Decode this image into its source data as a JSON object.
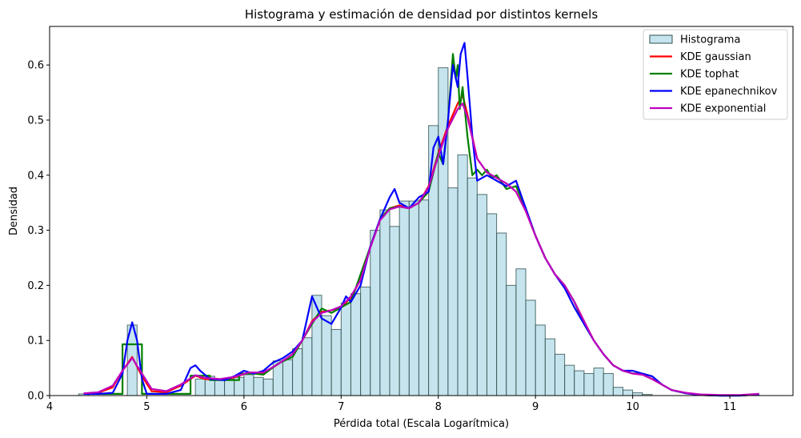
{
  "chart_data": {
    "type": "histogram",
    "title": "Histograma y estimación de densidad por distintos kernels",
    "xlabel": "Pérdida total (Escala Logarítmica)",
    "ylabel": "Densidad",
    "xlim": [
      4.0,
      11.65
    ],
    "ylim": [
      0.0,
      0.67
    ],
    "xticks": [
      4,
      5,
      6,
      7,
      8,
      9,
      10,
      11
    ],
    "yticks": [
      0.0,
      0.1,
      0.2,
      0.3,
      0.4,
      0.5,
      0.6
    ],
    "legend_position": "top-right",
    "histogram": {
      "name": "Histograma",
      "color": "#add8e6",
      "edge_color": "#2f4f4f",
      "bin_edges": [
        4.3,
        4.4,
        4.5,
        4.6,
        4.7,
        4.8,
        4.9,
        5.0,
        5.1,
        5.2,
        5.3,
        5.4,
        5.5,
        5.6,
        5.7,
        5.8,
        5.9,
        6.0,
        6.1,
        6.2,
        6.3,
        6.4,
        6.5,
        6.6,
        6.7,
        6.8,
        6.9,
        7.0,
        7.1,
        7.2,
        7.3,
        7.4,
        7.5,
        7.6,
        7.7,
        7.8,
        7.9,
        8.0,
        8.1,
        8.2,
        8.3,
        8.4,
        8.5,
        8.6,
        8.7,
        8.8,
        8.9,
        9.0,
        9.1,
        9.2,
        9.3,
        9.4,
        9.5,
        9.6,
        9.7,
        9.8,
        9.9,
        10.0,
        10.1,
        10.2,
        10.3,
        10.4,
        10.5,
        10.6,
        10.7,
        10.8,
        10.9,
        11.0,
        11.1,
        11.2,
        11.3
      ],
      "values": [
        0.003,
        0.0,
        0.0,
        0.0,
        0.0,
        0.128,
        0.0,
        0.0,
        0.0,
        0.0,
        0.0,
        0.0,
        0.03,
        0.035,
        0.03,
        0.03,
        0.033,
        0.038,
        0.033,
        0.03,
        0.063,
        0.065,
        0.085,
        0.105,
        0.182,
        0.145,
        0.12,
        0.168,
        0.185,
        0.197,
        0.3,
        0.337,
        0.307,
        0.353,
        0.353,
        0.355,
        0.49,
        0.595,
        0.377,
        0.437,
        0.395,
        0.365,
        0.33,
        0.295,
        0.2,
        0.23,
        0.173,
        0.128,
        0.103,
        0.075,
        0.055,
        0.045,
        0.04,
        0.05,
        0.04,
        0.015,
        0.01,
        0.005,
        0.002,
        0.0,
        0.0,
        0.0,
        0.0,
        0.0,
        0.0,
        0.0,
        0.0,
        0.0,
        0.0,
        0.003
      ]
    },
    "series": [
      {
        "name": "KDE gaussian",
        "color": "#ff0000",
        "x": [
          4.35,
          4.5,
          4.65,
          4.75,
          4.85,
          4.95,
          5.05,
          5.2,
          5.35,
          5.5,
          5.6,
          5.75,
          5.9,
          6.05,
          6.2,
          6.35,
          6.5,
          6.6,
          6.7,
          6.8,
          6.9,
          7.0,
          7.1,
          7.2,
          7.3,
          7.4,
          7.5,
          7.6,
          7.7,
          7.8,
          7.9,
          8.0,
          8.1,
          8.2,
          8.25,
          8.3,
          8.4,
          8.5,
          8.6,
          8.7,
          8.8,
          8.9,
          9.0,
          9.1,
          9.2,
          9.3,
          9.4,
          9.5,
          9.6,
          9.7,
          9.8,
          9.9,
          10.0,
          10.1,
          10.2,
          10.3,
          10.4,
          10.55,
          10.7,
          10.9,
          11.1,
          11.3
        ],
        "y": [
          0.003,
          0.005,
          0.015,
          0.045,
          0.07,
          0.035,
          0.008,
          0.006,
          0.018,
          0.036,
          0.03,
          0.028,
          0.033,
          0.042,
          0.04,
          0.057,
          0.075,
          0.1,
          0.135,
          0.152,
          0.155,
          0.16,
          0.178,
          0.21,
          0.27,
          0.32,
          0.34,
          0.345,
          0.34,
          0.35,
          0.38,
          0.44,
          0.49,
          0.53,
          0.545,
          0.51,
          0.43,
          0.405,
          0.395,
          0.385,
          0.37,
          0.335,
          0.29,
          0.25,
          0.22,
          0.2,
          0.17,
          0.135,
          0.1,
          0.075,
          0.055,
          0.045,
          0.04,
          0.038,
          0.03,
          0.02,
          0.01,
          0.004,
          0.001,
          0.0,
          0.0,
          0.002
        ]
      },
      {
        "name": "KDE tophat",
        "color": "#008000",
        "x": [
          4.35,
          4.5,
          4.65,
          4.75,
          4.75,
          4.95,
          4.95,
          5.2,
          5.4,
          5.45,
          5.45,
          5.65,
          5.65,
          5.85,
          5.95,
          5.95,
          6.1,
          6.2,
          6.35,
          6.5,
          6.6,
          6.7,
          6.8,
          6.9,
          7.0,
          7.1,
          7.2,
          7.3,
          7.4,
          7.5,
          7.6,
          7.7,
          7.8,
          7.9,
          8.0,
          8.05,
          8.1,
          8.15,
          8.18,
          8.2,
          8.22,
          8.25,
          8.3,
          8.35,
          8.4,
          8.45,
          8.5,
          8.55,
          8.6,
          8.7,
          8.8,
          8.9,
          9.0,
          9.1,
          9.2,
          9.3,
          9.4,
          9.5,
          9.6,
          9.7,
          9.8,
          9.9,
          10.0,
          10.1,
          10.2,
          10.3,
          10.4,
          10.55,
          10.7,
          10.9,
          11.1,
          11.3
        ],
        "y": [
          0.003,
          0.003,
          0.003,
          0.003,
          0.093,
          0.093,
          0.003,
          0.003,
          0.003,
          0.003,
          0.036,
          0.036,
          0.028,
          0.028,
          0.028,
          0.04,
          0.04,
          0.038,
          0.058,
          0.07,
          0.1,
          0.13,
          0.158,
          0.15,
          0.16,
          0.17,
          0.22,
          0.27,
          0.32,
          0.34,
          0.343,
          0.34,
          0.35,
          0.37,
          0.44,
          0.42,
          0.5,
          0.62,
          0.575,
          0.6,
          0.52,
          0.56,
          0.47,
          0.4,
          0.41,
          0.4,
          0.41,
          0.395,
          0.4,
          0.375,
          0.38,
          0.34,
          0.29,
          0.25,
          0.22,
          0.2,
          0.17,
          0.13,
          0.1,
          0.075,
          0.055,
          0.045,
          0.04,
          0.04,
          0.035,
          0.02,
          0.01,
          0.004,
          0.001,
          0.0,
          0.0,
          0.002
        ]
      },
      {
        "name": "KDE epanechnikov",
        "color": "#0000ff",
        "x": [
          4.35,
          4.5,
          4.65,
          4.75,
          4.8,
          4.85,
          4.9,
          4.95,
          5.0,
          5.2,
          5.35,
          5.45,
          5.5,
          5.55,
          5.65,
          5.8,
          5.9,
          6.0,
          6.1,
          6.2,
          6.3,
          6.4,
          6.5,
          6.6,
          6.65,
          6.7,
          6.75,
          6.8,
          6.9,
          7.0,
          7.05,
          7.1,
          7.2,
          7.3,
          7.4,
          7.5,
          7.55,
          7.6,
          7.7,
          7.8,
          7.9,
          7.95,
          8.0,
          8.05,
          8.1,
          8.15,
          8.2,
          8.23,
          8.27,
          8.3,
          8.35,
          8.4,
          8.5,
          8.6,
          8.7,
          8.8,
          8.9,
          9.0,
          9.1,
          9.2,
          9.3,
          9.4,
          9.5,
          9.6,
          9.7,
          9.8,
          9.9,
          10.0,
          10.1,
          10.2,
          10.3,
          10.4,
          10.55,
          10.7,
          10.9,
          11.1,
          11.3
        ],
        "y": [
          0.003,
          0.003,
          0.005,
          0.04,
          0.1,
          0.133,
          0.1,
          0.03,
          0.003,
          0.003,
          0.01,
          0.05,
          0.055,
          0.045,
          0.03,
          0.028,
          0.035,
          0.045,
          0.04,
          0.045,
          0.06,
          0.068,
          0.08,
          0.1,
          0.14,
          0.18,
          0.16,
          0.14,
          0.13,
          0.16,
          0.18,
          0.17,
          0.2,
          0.27,
          0.32,
          0.36,
          0.375,
          0.35,
          0.34,
          0.36,
          0.37,
          0.45,
          0.47,
          0.42,
          0.5,
          0.6,
          0.56,
          0.62,
          0.64,
          0.58,
          0.47,
          0.39,
          0.4,
          0.39,
          0.38,
          0.39,
          0.34,
          0.29,
          0.25,
          0.22,
          0.195,
          0.16,
          0.13,
          0.1,
          0.075,
          0.055,
          0.045,
          0.045,
          0.04,
          0.035,
          0.02,
          0.01,
          0.004,
          0.001,
          0.0,
          0.0,
          0.002
        ]
      },
      {
        "name": "KDE exponential",
        "color": "#bf00bf",
        "x": [
          4.35,
          4.5,
          4.65,
          4.75,
          4.85,
          4.95,
          5.05,
          5.2,
          5.35,
          5.5,
          5.6,
          5.75,
          5.9,
          6.05,
          6.2,
          6.35,
          6.5,
          6.6,
          6.7,
          6.8,
          6.9,
          7.0,
          7.1,
          7.2,
          7.3,
          7.4,
          7.5,
          7.6,
          7.7,
          7.8,
          7.9,
          8.0,
          8.1,
          8.2,
          8.25,
          8.3,
          8.4,
          8.5,
          8.6,
          8.7,
          8.8,
          8.9,
          9.0,
          9.1,
          9.2,
          9.3,
          9.4,
          9.5,
          9.6,
          9.7,
          9.8,
          9.9,
          10.0,
          10.1,
          10.2,
          10.3,
          10.4,
          10.55,
          10.7,
          10.9,
          11.1,
          11.3
        ],
        "y": [
          0.004,
          0.006,
          0.018,
          0.045,
          0.068,
          0.04,
          0.012,
          0.008,
          0.02,
          0.037,
          0.032,
          0.03,
          0.034,
          0.042,
          0.042,
          0.057,
          0.075,
          0.1,
          0.133,
          0.15,
          0.155,
          0.162,
          0.18,
          0.21,
          0.268,
          0.318,
          0.338,
          0.343,
          0.34,
          0.35,
          0.378,
          0.435,
          0.485,
          0.52,
          0.53,
          0.505,
          0.43,
          0.405,
          0.395,
          0.385,
          0.37,
          0.335,
          0.29,
          0.25,
          0.22,
          0.2,
          0.17,
          0.135,
          0.1,
          0.075,
          0.055,
          0.045,
          0.04,
          0.038,
          0.03,
          0.02,
          0.01,
          0.005,
          0.002,
          0.001,
          0.001,
          0.003
        ]
      }
    ]
  }
}
